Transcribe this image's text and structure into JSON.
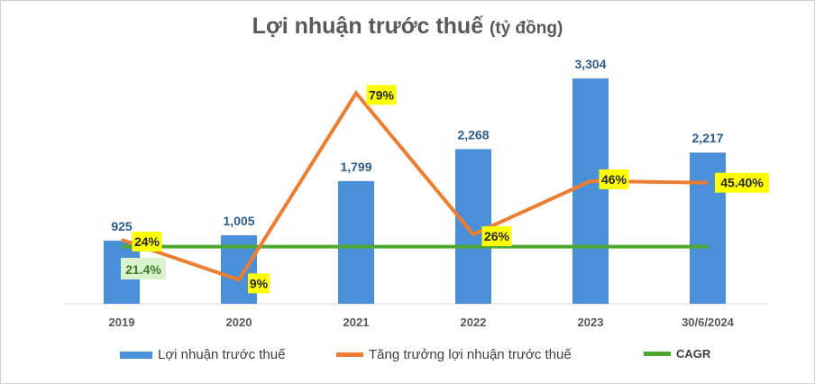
{
  "chart_data": {
    "type": "bar+line",
    "title": "Lợi nhuận trước thuế",
    "subtitle": "(tỷ đồng)",
    "categories": [
      "2019",
      "2020",
      "2021",
      "2022",
      "2023",
      "30/6/2024"
    ],
    "series": [
      {
        "name": "Lợi nhuận trước thuế",
        "type": "bar",
        "axis": "primary",
        "color": "#4a90d9",
        "values": [
          925,
          1005,
          1799,
          2268,
          3304,
          2217
        ],
        "labels": [
          "925",
          "1,005",
          "1,799",
          "2,268",
          "3,304",
          "2,217"
        ]
      },
      {
        "name": "Tăng trưởng lợi nhuận trước thuế",
        "type": "line",
        "axis": "secondary",
        "color": "#ed7d31",
        "values": [
          24,
          9,
          79,
          26,
          46,
          45.4
        ],
        "labels": [
          "24%",
          "9%",
          "79%",
          "26%",
          "46%",
          "45.40%"
        ]
      },
      {
        "name": "CAGR",
        "type": "line",
        "axis": "secondary",
        "color": "#4ea72e",
        "values": [
          21.4,
          21.4,
          21.4,
          21.4,
          21.4,
          21.4
        ],
        "labels": [
          "21.4%"
        ]
      }
    ],
    "ylim": [
      0,
      3304
    ],
    "y2lim": [
      0,
      84.5
    ],
    "grid": false,
    "legend": "bottom"
  }
}
